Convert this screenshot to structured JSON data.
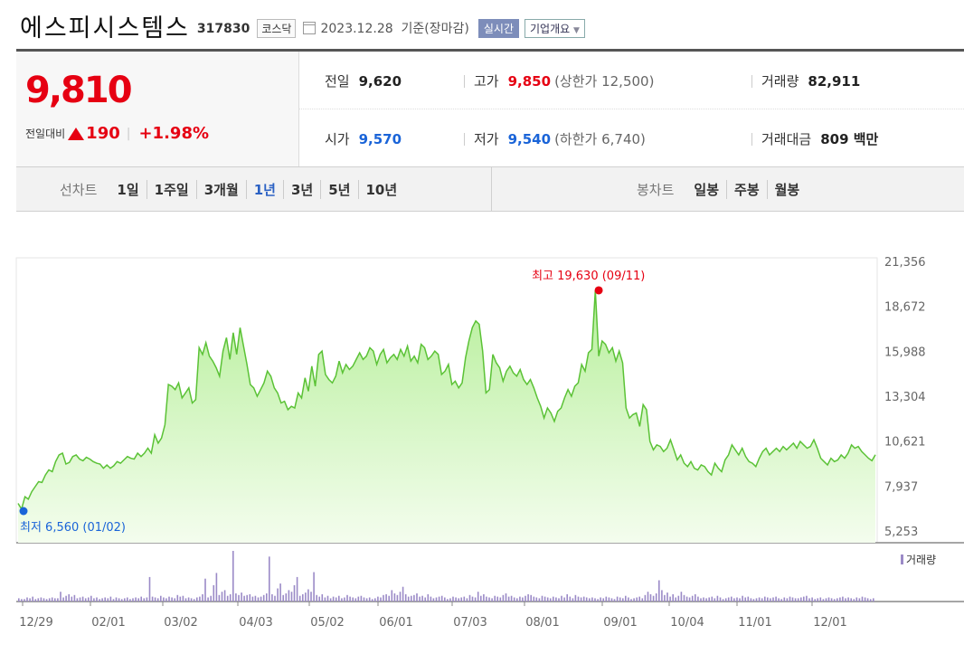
{
  "header": {
    "company_name": "에스피시스템스",
    "code": "317830",
    "market_badge": "코스닥",
    "date_text": "2023.12.28  기준(장마감)",
    "realtime_label": "실시간",
    "overview_label": "기업개요",
    "calendar_icon": "calendar-icon",
    "dropdown_icon": "caret-down-icon"
  },
  "price": {
    "current": "9,810",
    "change_label": "전일대비",
    "change_value": "190",
    "change_rate": "+1.98%",
    "up_color": "#e60012",
    "down_color": "#1a64d8"
  },
  "stats": {
    "prev_close_label": "전일",
    "prev_close": "9,620",
    "high_label": "고가",
    "high": "9,850",
    "upper_limit": "(상한가 12,500)",
    "volume_label": "거래량",
    "volume": "82,911",
    "open_label": "시가",
    "open": "9,570",
    "low_label": "저가",
    "low": "9,540",
    "lower_limit": "(하한가 6,740)",
    "amount_label": "거래대금",
    "amount": "809 백만"
  },
  "tabs": {
    "line_label": "선차트",
    "line_items": [
      "1일",
      "1주일",
      "3개월",
      "1년",
      "3년",
      "5년",
      "10년"
    ],
    "line_selected": "1년",
    "candle_label": "봉차트",
    "candle_items": [
      "일봉",
      "주봉",
      "월봉"
    ]
  },
  "chart_data": {
    "type": "area",
    "y_ticks": [
      "21,356",
      "18,672",
      "15,988",
      "13,304",
      "10,621",
      "7,937",
      "5,253"
    ],
    "ylim": [
      5253,
      21356
    ],
    "x_ticks": [
      "12/29",
      "02/01",
      "03/02",
      "04/03",
      "05/02",
      "06/01",
      "07/03",
      "08/01",
      "09/01",
      "10/04",
      "11/01",
      "12/01"
    ],
    "series": [
      {
        "values": [
          6900,
          6560,
          7300,
          7150,
          7600,
          7900,
          8200,
          8150,
          8600,
          8900,
          8800,
          9400,
          9800,
          9900,
          9250,
          9350,
          9700,
          9800,
          9550,
          9450,
          9650,
          9550,
          9400,
          9300,
          9250,
          9000,
          9200,
          9000,
          9150,
          9400,
          9300,
          9500,
          9700,
          9600,
          9550,
          9900,
          9700,
          9900,
          10200,
          9900,
          11000,
          10500,
          10800,
          11600,
          14000,
          13900,
          13700,
          14100,
          13200,
          13500,
          13800,
          12900,
          13100,
          16200,
          15800,
          16500,
          15700,
          15400,
          15000,
          14500,
          16000,
          16800,
          15500,
          17100,
          15800,
          17400,
          16300,
          15200,
          14000,
          13800,
          13300,
          13700,
          14100,
          14800,
          14500,
          13800,
          13500,
          12900,
          13000,
          12500,
          12700,
          12600,
          13500,
          13200,
          14400,
          13600,
          15100,
          13900,
          15800,
          16000,
          14600,
          14300,
          14100,
          14500,
          15400,
          14700,
          15200,
          14900,
          15100,
          15500,
          15900,
          15500,
          15700,
          16200,
          16000,
          15200,
          15800,
          16100,
          15300,
          15600,
          15800,
          15500,
          16100,
          15700,
          16300,
          15400,
          15700,
          15300,
          16400,
          16200,
          15500,
          15700,
          16000,
          15800,
          14600,
          14800,
          15200,
          14000,
          14200,
          13800,
          14100,
          15600,
          16600,
          17400,
          17800,
          17600,
          16000,
          13500,
          13700,
          15800,
          15300,
          15000,
          14200,
          14800,
          15100,
          14700,
          14500,
          14900,
          14300,
          14000,
          14300,
          13800,
          13200,
          12700,
          12000,
          12600,
          12300,
          11800,
          12400,
          12600,
          13200,
          13700,
          13300,
          13900,
          14100,
          15200,
          14800,
          15900,
          16100,
          19630,
          15700,
          16600,
          16400,
          15900,
          16200,
          15400,
          16000,
          15300,
          12600,
          12000,
          12200,
          12300,
          11500,
          12800,
          12500,
          10600,
          10100,
          10400,
          10300,
          10000,
          10200,
          10700,
          10100,
          9500,
          9800,
          9300,
          9100,
          9400,
          9000,
          8900,
          9200,
          9100,
          8800,
          8600,
          9300,
          9000,
          8800,
          9500,
          9800,
          10400,
          10100,
          9800,
          10200,
          9700,
          9400,
          9300,
          9100,
          9600,
          10000,
          10200,
          9800,
          10000,
          10200,
          10000,
          10300,
          10100,
          10300,
          10500,
          10200,
          10600,
          10400,
          10200,
          10300,
          10700,
          10200,
          9600,
          9400,
          9200,
          9600,
          9400,
          9500,
          9800,
          9600,
          9900,
          10400,
          10200,
          10300,
          10000,
          9800,
          9600,
          9450,
          9810
        ]
      }
    ],
    "volume_label": "거래량",
    "volume": [
      4,
      3,
      3,
      5,
      4,
      6,
      3,
      4,
      5,
      4,
      3,
      4,
      5,
      4,
      4,
      12,
      5,
      7,
      9,
      6,
      8,
      4,
      5,
      6,
      4,
      5,
      7,
      4,
      5,
      3,
      4,
      5,
      4,
      6,
      3,
      5,
      4,
      3,
      4,
      5,
      3,
      4,
      5,
      4,
      6,
      4,
      5,
      30,
      6,
      5,
      4,
      7,
      5,
      4,
      6,
      5,
      4,
      8,
      6,
      7,
      4,
      5,
      4,
      3,
      5,
      6,
      9,
      28,
      5,
      7,
      20,
      35,
      8,
      12,
      14,
      7,
      9,
      62,
      10,
      8,
      11,
      7,
      8,
      9,
      6,
      7,
      5,
      6,
      8,
      10,
      55,
      9,
      7,
      16,
      22,
      8,
      10,
      14,
      12,
      20,
      30,
      7,
      9,
      11,
      15,
      12,
      36,
      8,
      6,
      9,
      5,
      7,
      4,
      6,
      5,
      7,
      4,
      5,
      8,
      6,
      5,
      4,
      6,
      7,
      5,
      4,
      5,
      3,
      4,
      6,
      5,
      8,
      9,
      7,
      14,
      10,
      8,
      12,
      18,
      9,
      6,
      7,
      8,
      10,
      6,
      7,
      5,
      9,
      6,
      4,
      5,
      6,
      7,
      5,
      3,
      4,
      6,
      5,
      4,
      5,
      6,
      4,
      8,
      6,
      5,
      12,
      7,
      9,
      6,
      5,
      4,
      7,
      6,
      5,
      8,
      10,
      6,
      7,
      5,
      4,
      6,
      5,
      7,
      9,
      8,
      6,
      5,
      4,
      7,
      6,
      5,
      4,
      6,
      5,
      4,
      7,
      5,
      9,
      6,
      4,
      8,
      6,
      5,
      6,
      5,
      4,
      5,
      4,
      3,
      5,
      4,
      6,
      5,
      4,
      3,
      6,
      5,
      4,
      7,
      5,
      3,
      4,
      5,
      6,
      4,
      8,
      12,
      9,
      7,
      10,
      26,
      14,
      8,
      11,
      6,
      9,
      5,
      7,
      12,
      8,
      6,
      5,
      7,
      9,
      6,
      4,
      5,
      4,
      5,
      6,
      4,
      7,
      5,
      3,
      4,
      5,
      6,
      4,
      5,
      4,
      7,
      5,
      6,
      4,
      3,
      4,
      5,
      4,
      6,
      5,
      4,
      5,
      6,
      4,
      3,
      5,
      4,
      6,
      5,
      4,
      4,
      5,
      6,
      7,
      4,
      5,
      3,
      4,
      5,
      3,
      4,
      5,
      4,
      3,
      4,
      5,
      6,
      4,
      5,
      4,
      3,
      5,
      4,
      6,
      5,
      4,
      3,
      4
    ],
    "annotations": {
      "high": {
        "label": "최고 19,630 (09/11)",
        "value": 19630,
        "index": 170
      },
      "low": {
        "label": "최저 6,560 (01/02)",
        "value": 6560,
        "index": 1
      }
    },
    "colors": {
      "line": "#5bc236",
      "fill_top": "#b7ef9b",
      "fill_bottom": "#f4fdee",
      "volume": "#9b8ac7",
      "high_dot": "#e60012",
      "low_dot": "#1a64d8"
    },
    "grid": false
  }
}
